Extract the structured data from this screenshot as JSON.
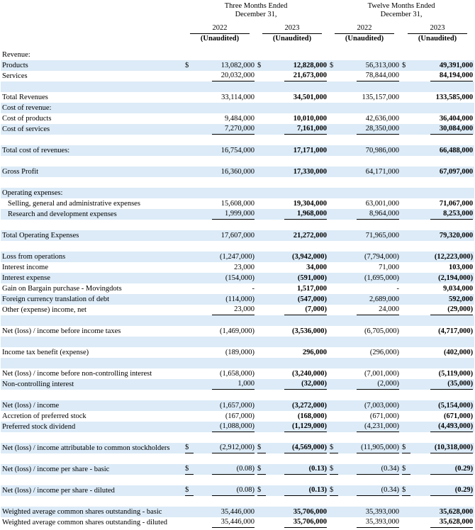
{
  "header": {
    "groups": [
      [
        "Three Months Ended",
        "December 31,"
      ],
      [
        "Twelve Months Ended",
        "December 31,"
      ]
    ],
    "years": [
      "2022",
      "2023",
      "2022",
      "2023"
    ],
    "audit": [
      "(Unaudited)",
      "(Unaudited)",
      "(Unaudited)",
      "(Unaudited)"
    ]
  },
  "sections": [
    [
      {
        "label": "Revenue:"
      },
      {
        "label": "Products",
        "currency": "$",
        "values": [
          "13,082,000",
          "12,828,000",
          "56,313,000",
          "49,391,000"
        ]
      },
      {
        "label": "Services",
        "underline": true,
        "values": [
          "20,032,000",
          "21,673,000",
          "78,844,000",
          "84,194,000"
        ]
      }
    ],
    [
      {
        "label": "Total Revenues",
        "values": [
          "33,114,000",
          "34,501,000",
          "135,157,000",
          "133,585,000"
        ]
      },
      {
        "label": "Cost of revenue:"
      },
      {
        "label": "Cost of products",
        "values": [
          "9,484,000",
          "10,010,000",
          "42,636,000",
          "36,404,000"
        ]
      },
      {
        "label": "Cost of services",
        "underline": true,
        "values": [
          "7,270,000",
          "7,161,000",
          "28,350,000",
          "30,084,000"
        ]
      }
    ],
    [
      {
        "label": "Total cost of revenues:",
        "values": [
          "16,754,000",
          "17,171,000",
          "70,986,000",
          "66,488,000"
        ]
      }
    ],
    [
      {
        "label": "Gross Profit",
        "values": [
          "16,360,000",
          "17,330,000",
          "64,171,000",
          "67,097,000"
        ]
      }
    ],
    [
      {
        "label": "Operating expenses:"
      },
      {
        "label": "Selling, general and administrative expenses",
        "indent": true,
        "values": [
          "15,608,000",
          "19,304,000",
          "63,001,000",
          "71,067,000"
        ]
      },
      {
        "label": "Research and development expenses",
        "indent": true,
        "underline": true,
        "values": [
          "1,999,000",
          "1,968,000",
          "8,964,000",
          "8,253,000"
        ]
      }
    ],
    [
      {
        "label": "Total Operating Expenses",
        "values": [
          "17,607,000",
          "21,272,000",
          "71,965,000",
          "79,320,000"
        ]
      }
    ],
    [
      {
        "label": "Loss from operations",
        "values": [
          "(1,247,000)",
          "(3,942,000)",
          "(7,794,000)",
          "(12,223,000)"
        ]
      },
      {
        "label": "Interest income",
        "values": [
          "23,000",
          "34,000",
          "71,000",
          "103,000"
        ]
      },
      {
        "label": "Interest expense",
        "values": [
          "(154,000)",
          "(591,000)",
          "(1,695,000)",
          "(2,194,000)"
        ]
      },
      {
        "label": "Gain on Bargain purchase - Movingdots",
        "values": [
          "-",
          "1,517,000",
          "-",
          "9,034,000"
        ]
      },
      {
        "label": "Foreign currency translation of debt",
        "values": [
          "(114,000)",
          "(547,000)",
          "2,689,000",
          "592,000"
        ]
      },
      {
        "label": "Other (expense) income, net",
        "underline": true,
        "values": [
          "23,000",
          "(7,000)",
          "24,000",
          "(29,000)"
        ]
      }
    ],
    [
      {
        "label": "Net (loss) / income before income taxes",
        "values": [
          "(1,469,000)",
          "(3,536,000)",
          "(6,705,000)",
          "(4,717,000)"
        ]
      }
    ],
    [
      {
        "label": "Income tax benefit (expense)",
        "values": [
          "(189,000)",
          "296,000",
          "(296,000)",
          "(402,000)"
        ]
      }
    ],
    [
      {
        "label": "Net (loss) / income before non-controlling interest",
        "values": [
          "(1,658,000)",
          "(3,240,000)",
          "(7,001,000)",
          "(5,119,000)"
        ]
      },
      {
        "label": "Non-controlling interest",
        "underline": true,
        "values": [
          "1,000",
          "(32,000)",
          "(2,000)",
          "(35,000)"
        ]
      }
    ],
    [
      {
        "label": "Net (loss) / income",
        "values": [
          "(1,657,000)",
          "(3,272,000)",
          "(7,003,000)",
          "(5,154,000)"
        ]
      },
      {
        "label": "Accretion of preferred stock",
        "values": [
          "(167,000)",
          "(168,000)",
          "(671,000)",
          "(671,000)"
        ]
      },
      {
        "label": "Preferred stock dividend",
        "underline": true,
        "values": [
          "(1,088,000)",
          "(1,129,000)",
          "(4,231,000)",
          "(4,493,000)"
        ]
      }
    ],
    [
      {
        "label": "Net (loss) / income attributable to common stockholders",
        "currency": "$",
        "underline": true,
        "values": [
          "(2,912,000)",
          "(4,569,000)",
          "(11,905,000)",
          "(10,318,000)"
        ]
      }
    ],
    [
      {
        "label": "Net (loss) / income per share - basic",
        "currency": "$",
        "underline": true,
        "values": [
          "(0.08)",
          "(0.13)",
          "(0.34)",
          "(0.29)"
        ]
      }
    ],
    [
      {
        "label": "Net (loss) / income per share - diluted",
        "currency": "$",
        "underline": true,
        "values": [
          "(0.08)",
          "(0.13)",
          "(0.34)",
          "(0.29)"
        ]
      }
    ],
    [
      {
        "label": "Weighted average common shares outstanding - basic",
        "values": [
          "35,446,000",
          "35,706,000",
          "35,393,000",
          "35,628,000"
        ]
      },
      {
        "label": "Weighted average common shares outstanding - diluted",
        "underline": true,
        "values": [
          "35,446,000",
          "35,706,000",
          "35,393,000",
          "35,628,000"
        ]
      }
    ]
  ]
}
